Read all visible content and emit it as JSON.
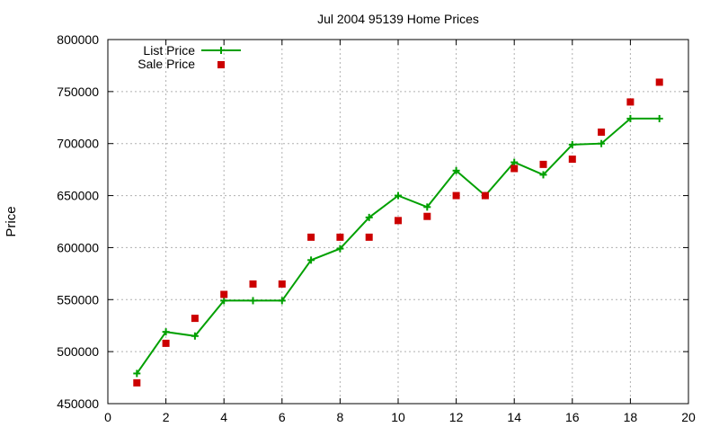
{
  "chart_data": {
    "type": "line",
    "title": "Jul 2004 95139 Home Prices",
    "xlabel": "",
    "ylabel": "Price",
    "xlim": [
      0,
      20
    ],
    "ylim": [
      450000,
      800000
    ],
    "xticks": [
      0,
      2,
      4,
      6,
      8,
      10,
      12,
      14,
      16,
      18,
      20
    ],
    "yticks": [
      450000,
      500000,
      550000,
      600000,
      650000,
      700000,
      750000,
      800000
    ],
    "grid": true,
    "legend_position": "top-left",
    "series": [
      {
        "name": "List Price",
        "style": "line-with-plus-markers",
        "color": "#00a000",
        "points": [
          [
            1,
            479000
          ],
          [
            2,
            519000
          ],
          [
            3,
            515000
          ],
          [
            4,
            549000
          ],
          [
            5,
            549000
          ],
          [
            6,
            549000
          ],
          [
            7,
            588000
          ],
          [
            8,
            599000
          ],
          [
            9,
            629000
          ],
          [
            10,
            650000
          ],
          [
            11,
            639000
          ],
          [
            12,
            674000
          ],
          [
            13,
            650000
          ],
          [
            14,
            682000
          ],
          [
            15,
            670000
          ],
          [
            16,
            699000
          ],
          [
            17,
            700000
          ],
          [
            18,
            724000
          ],
          [
            19,
            724000
          ]
        ]
      },
      {
        "name": "Sale Price",
        "style": "square-markers",
        "color": "#cc0000",
        "points": [
          [
            1,
            470000
          ],
          [
            2,
            508000
          ],
          [
            3,
            532000
          ],
          [
            4,
            555000
          ],
          [
            5,
            565000
          ],
          [
            6,
            565000
          ],
          [
            7,
            610000
          ],
          [
            8,
            610000
          ],
          [
            9,
            610000
          ],
          [
            10,
            626000
          ],
          [
            11,
            630000
          ],
          [
            12,
            650000
          ],
          [
            13,
            650000
          ],
          [
            14,
            676000
          ],
          [
            15,
            680000
          ],
          [
            16,
            685000
          ],
          [
            17,
            711000
          ],
          [
            18,
            740000
          ],
          [
            19,
            759000
          ]
        ]
      }
    ]
  }
}
